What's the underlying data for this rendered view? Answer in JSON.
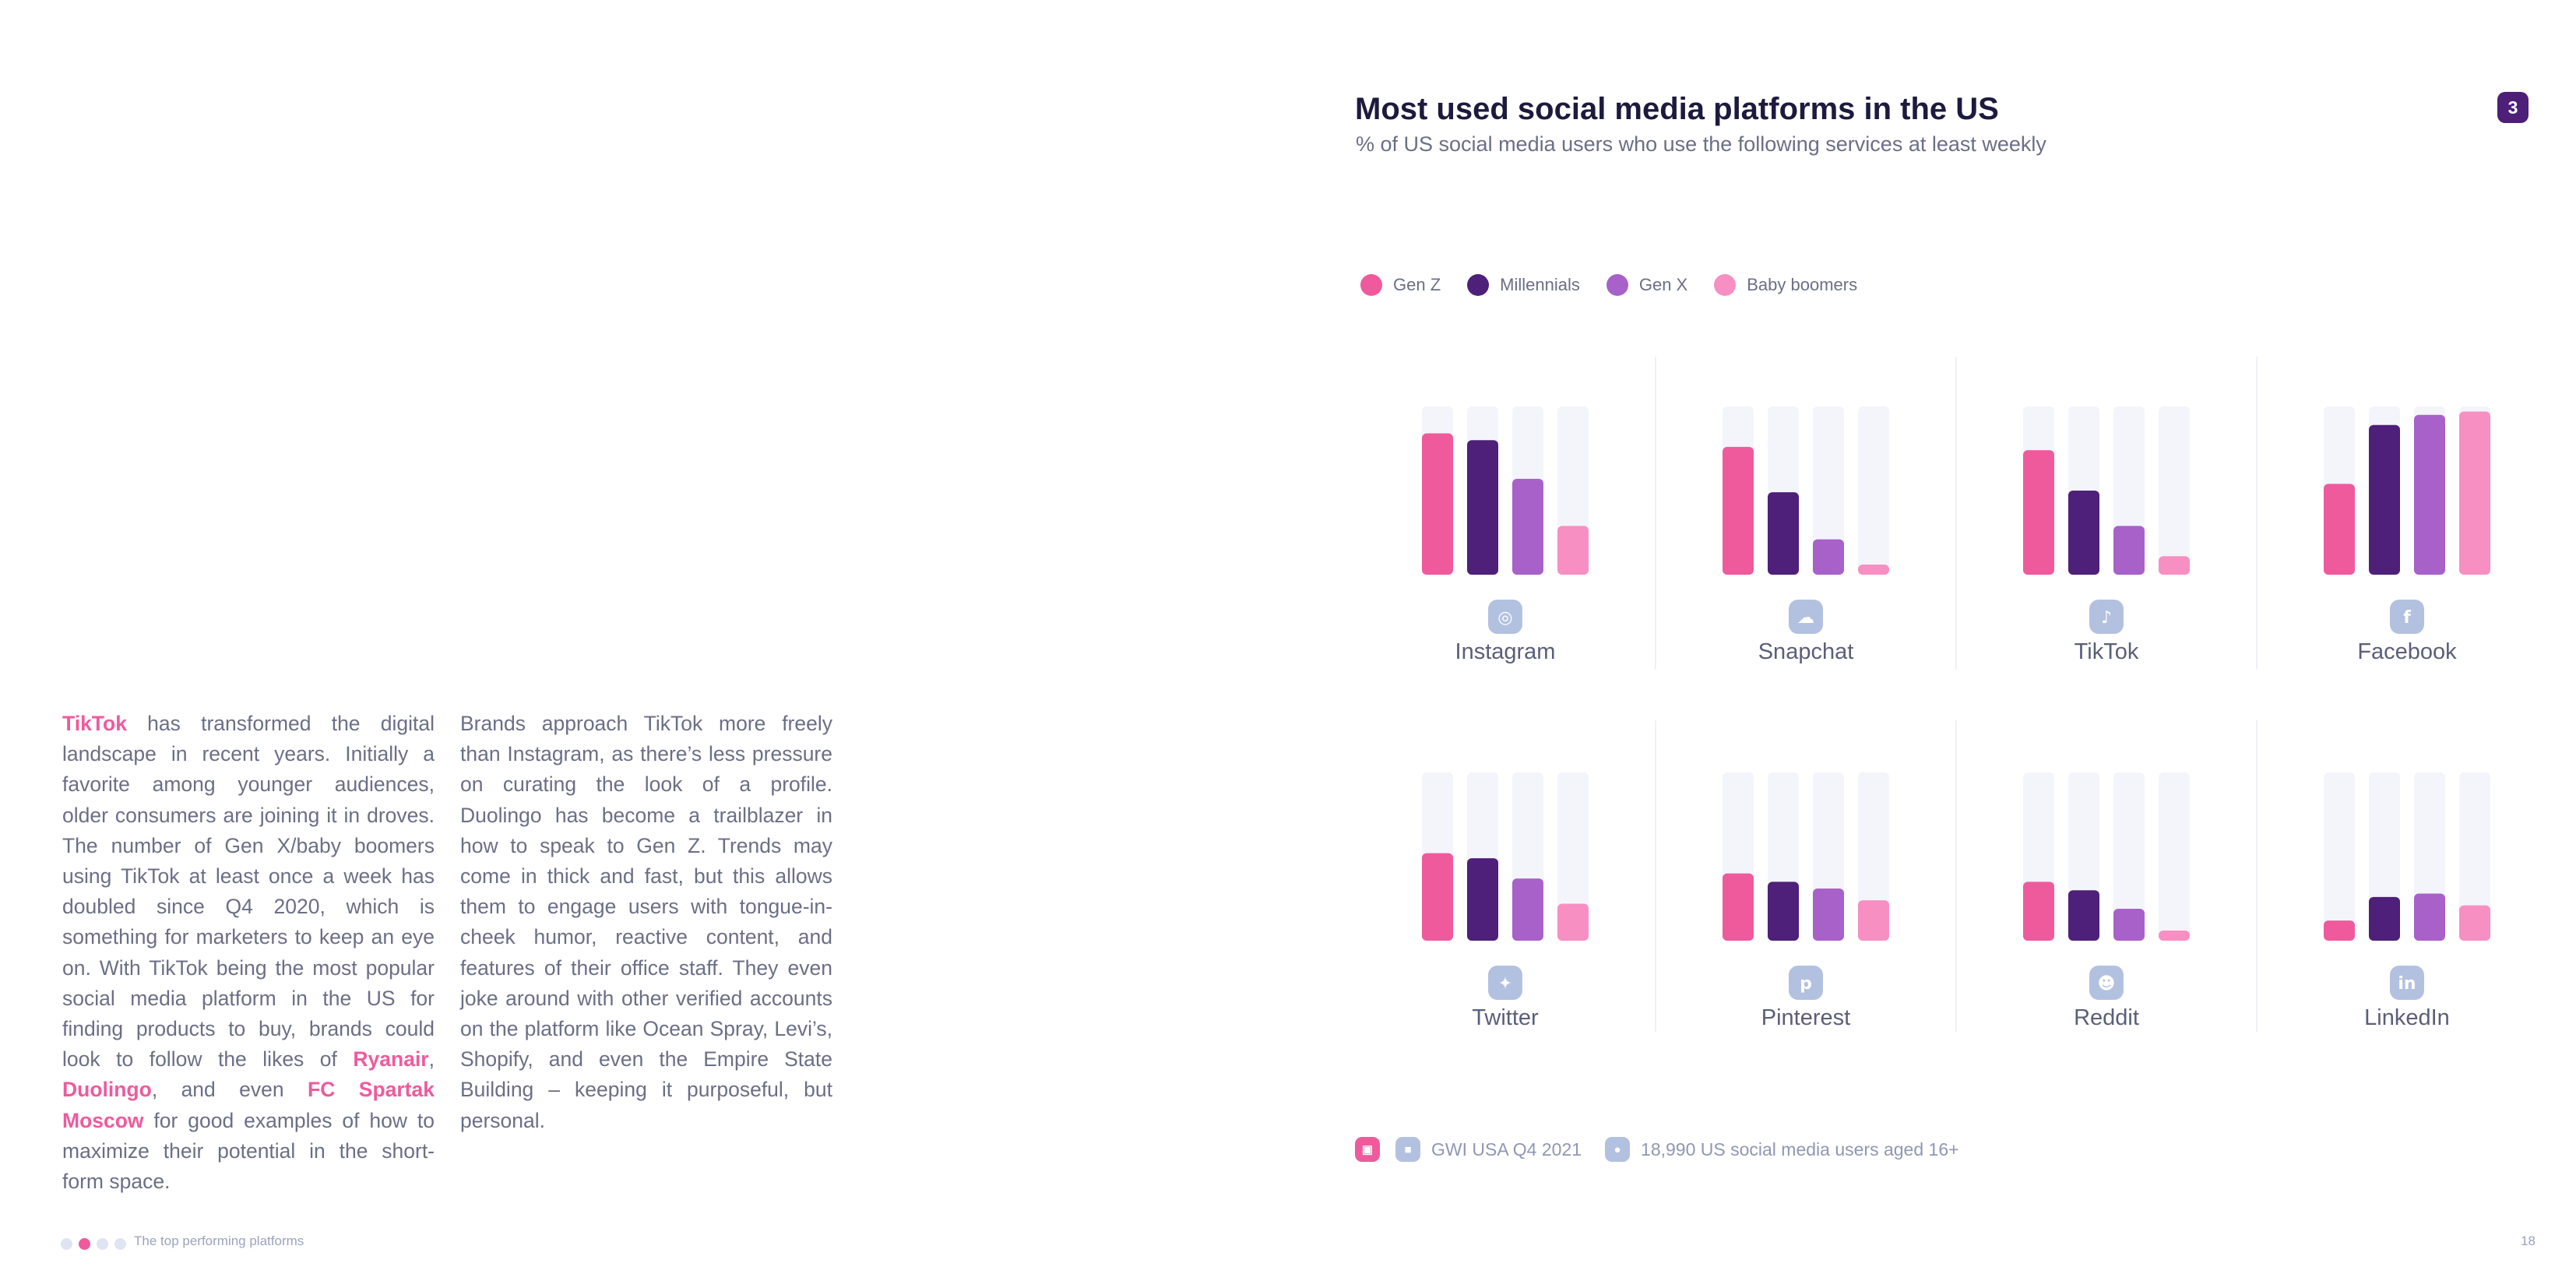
{
  "left": {
    "col1": [
      {
        "t": "TikTok",
        "hl": true
      },
      {
        "t": " has transformed the digital landscape in recent years. Initially a favorite among younger audiences, older consumers are joining it in droves. The number of Gen X/baby boomers using TikTok at least once a week has doubled since Q4 2020, which is something for marketers to keep an eye on. With TikTok being the most popular social media platform in the US for finding products to buy, brands could look to follow the likes of "
      },
      {
        "t": "Ryanair",
        "hl": true
      },
      {
        "t": ", "
      },
      {
        "t": "Duolingo",
        "hl": true
      },
      {
        "t": ", and even "
      },
      {
        "t": "FC Spartak Moscow",
        "hl": true
      },
      {
        "t": " for good examples of how to maximize their potential in the short-form space."
      }
    ],
    "col2": "Brands approach TikTok more freely than Instagram, as there’s less pressure on curating the look of a profile. Duolingo has become a trailblazer in how to speak to Gen Z. Trends may come in thick and fast, but this allows them to engage users with tongue-in-cheek humor, reactive content, and features of their office staff. They even joke around with other verified accounts on the platform like Ocean Spray, Levi’s, Shopify, and even the Empire State Building – keeping it purposeful, but personal."
  },
  "footer": {
    "section_title": "The top performing platforms",
    "page_number": "18",
    "pager_dots": 4,
    "pager_active": 1
  },
  "chart_badge": "3",
  "chart_data": {
    "type": "bar",
    "title": "Most used social media platforms in the US",
    "subtitle": "% of US social media users who use the following services at least weekly",
    "ylim": [
      0,
      100
    ],
    "series_names": [
      "Gen Z",
      "Millennials",
      "Gen X",
      "Baby boomers"
    ],
    "colors": [
      "#ef5a9d",
      "#4e2079",
      "#a861c9",
      "#f78fc2"
    ],
    "track_color": "#f3f5fa",
    "platforms": [
      {
        "name": "Instagram",
        "icon": "instagram-icon",
        "values": [
          84,
          80,
          57,
          29
        ]
      },
      {
        "name": "Snapchat",
        "icon": "snapchat-icon",
        "values": [
          76,
          49,
          21,
          6
        ]
      },
      {
        "name": "TikTok",
        "icon": "tiktok-icon",
        "values": [
          74,
          50,
          29,
          11
        ]
      },
      {
        "name": "Facebook",
        "icon": "facebook-icon",
        "values": [
          54,
          89,
          95,
          97
        ]
      },
      {
        "name": "Twitter",
        "icon": "twitter-icon",
        "values": [
          52,
          49,
          37,
          22
        ]
      },
      {
        "name": "Pinterest",
        "icon": "pinterest-icon",
        "values": [
          40,
          35,
          31,
          24
        ]
      },
      {
        "name": "Reddit",
        "icon": "reddit-icon",
        "values": [
          35,
          30,
          19,
          6
        ]
      },
      {
        "name": "LinkedIn",
        "icon": "linkedin-icon",
        "values": [
          12,
          26,
          28,
          21
        ]
      }
    ]
  },
  "source": {
    "dataset": "GWI USA Q4 2021",
    "sample": "18,990 US social media users aged 16+",
    "icon_colors": [
      "#ef5a9d",
      "#b3c1e0",
      "#b3c1e0"
    ]
  }
}
